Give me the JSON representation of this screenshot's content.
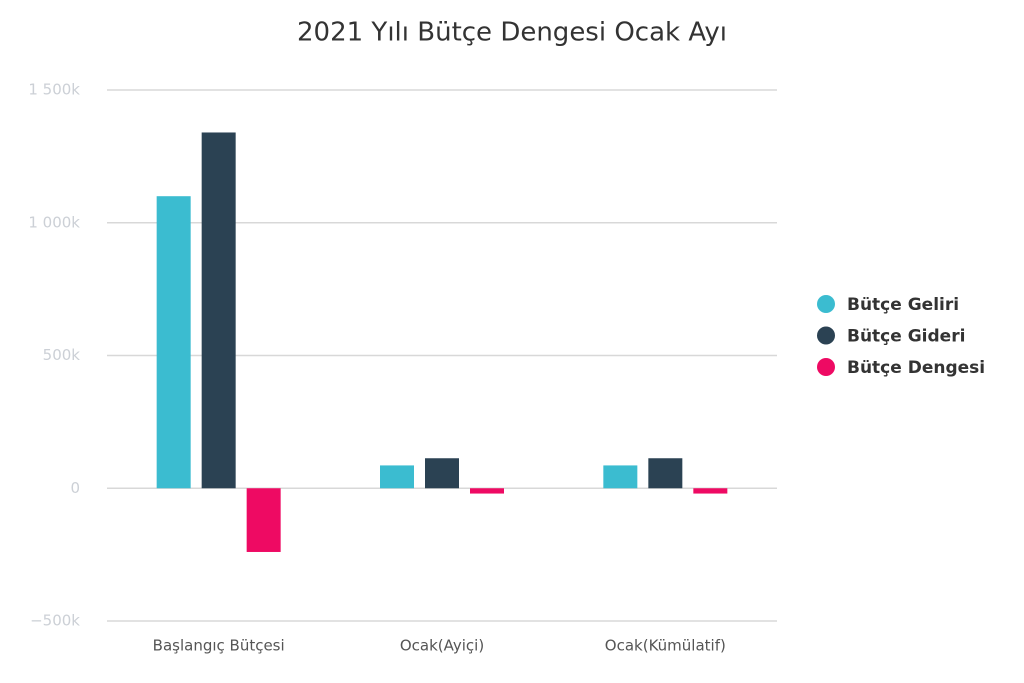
{
  "chart_data": {
    "type": "bar",
    "title": "2021 Yılı Bütçe Dengesi Ocak Ayı",
    "categories": [
      "Başlangıç Bütçesi",
      "Ocak(Ayiçi)",
      "Ocak(Kümülatif)"
    ],
    "series": [
      {
        "name": "Bütçe Geliri",
        "color": "#3bbcd0",
        "values": [
          1100000,
          86000,
          86000
        ]
      },
      {
        "name": "Bütçe Gideri",
        "color": "#2b4253",
        "values": [
          1340000,
          113000,
          113000
        ]
      },
      {
        "name": "Bütçe Dengesi",
        "color": "#ee0a63",
        "values": [
          -240000,
          -20000,
          -20000
        ]
      }
    ],
    "ylim": [
      -500000,
      1500000
    ],
    "yticks": [
      {
        "value": -500000,
        "label": "−500k"
      },
      0,
      {
        "value": 500000,
        "label": "500k"
      },
      {
        "value": 1000000,
        "label": "1 000k"
      },
      {
        "value": 1500000,
        "label": "1 500k"
      }
    ],
    "grid": true,
    "legend": "right"
  }
}
